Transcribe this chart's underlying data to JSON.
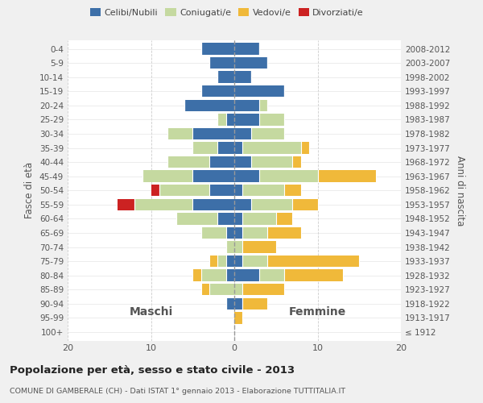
{
  "age_groups": [
    "100+",
    "95-99",
    "90-94",
    "85-89",
    "80-84",
    "75-79",
    "70-74",
    "65-69",
    "60-64",
    "55-59",
    "50-54",
    "45-49",
    "40-44",
    "35-39",
    "30-34",
    "25-29",
    "20-24",
    "15-19",
    "10-14",
    "5-9",
    "0-4"
  ],
  "birth_years": [
    "≤ 1912",
    "1913-1917",
    "1918-1922",
    "1923-1927",
    "1928-1932",
    "1933-1937",
    "1938-1942",
    "1943-1947",
    "1948-1952",
    "1953-1957",
    "1958-1962",
    "1963-1967",
    "1968-1972",
    "1973-1977",
    "1978-1982",
    "1983-1987",
    "1988-1992",
    "1993-1997",
    "1998-2002",
    "2003-2007",
    "2008-2012"
  ],
  "maschi": {
    "celibi": [
      0,
      0,
      1,
      0,
      1,
      1,
      0,
      1,
      2,
      5,
      3,
      5,
      3,
      2,
      5,
      1,
      6,
      4,
      2,
      3,
      4
    ],
    "coniugati": [
      0,
      0,
      0,
      3,
      3,
      1,
      1,
      3,
      5,
      7,
      6,
      6,
      5,
      3,
      3,
      1,
      0,
      0,
      0,
      0,
      0
    ],
    "vedovi": [
      0,
      0,
      0,
      1,
      1,
      1,
      0,
      0,
      0,
      0,
      0,
      0,
      0,
      0,
      0,
      0,
      0,
      0,
      0,
      0,
      0
    ],
    "divorziati": [
      0,
      0,
      0,
      0,
      0,
      0,
      0,
      0,
      0,
      2,
      1,
      0,
      0,
      0,
      0,
      0,
      0,
      0,
      0,
      0,
      0
    ]
  },
  "femmine": {
    "nubili": [
      0,
      0,
      1,
      0,
      3,
      1,
      0,
      1,
      1,
      2,
      1,
      3,
      2,
      1,
      2,
      3,
      3,
      6,
      2,
      4,
      3
    ],
    "coniugate": [
      0,
      0,
      0,
      1,
      3,
      3,
      1,
      3,
      4,
      5,
      5,
      7,
      5,
      7,
      4,
      3,
      1,
      0,
      0,
      0,
      0
    ],
    "vedove": [
      0,
      1,
      3,
      5,
      7,
      11,
      4,
      4,
      2,
      3,
      2,
      7,
      1,
      1,
      0,
      0,
      0,
      0,
      0,
      0,
      0
    ],
    "divorziate": [
      0,
      0,
      0,
      0,
      0,
      0,
      0,
      0,
      0,
      0,
      0,
      0,
      0,
      0,
      0,
      0,
      0,
      0,
      0,
      0,
      0
    ]
  },
  "colors": {
    "celibi_nubili": "#3d6fa8",
    "coniugati": "#c5d9a0",
    "vedovi": "#f0b93a",
    "divorziati": "#cc2222"
  },
  "xlim": [
    -20,
    20
  ],
  "xticks": [
    -20,
    -10,
    0,
    10,
    20
  ],
  "xticklabels": [
    "20",
    "10",
    "0",
    "10",
    "20"
  ],
  "title": "Popolazione per età, sesso e stato civile - 2013",
  "subtitle": "COMUNE DI GAMBERALE (CH) - Dati ISTAT 1° gennaio 2013 - Elaborazione TUTTITALIA.IT",
  "ylabel_left": "Fasce di età",
  "ylabel_right": "Anni di nascita",
  "bg_color": "#f0f0f0",
  "plot_bg": "#ffffff"
}
